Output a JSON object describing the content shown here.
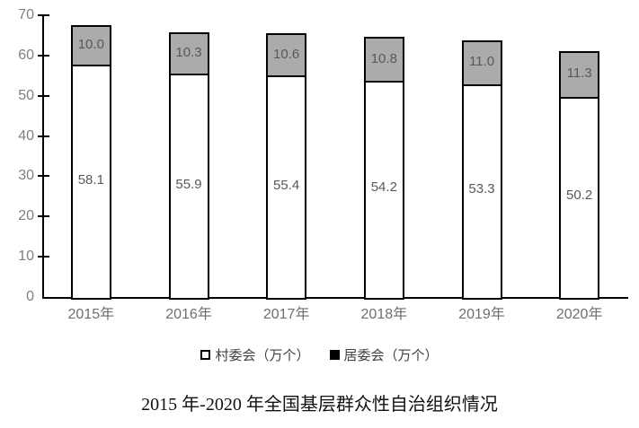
{
  "chart_data": {
    "type": "bar",
    "stacked": true,
    "title": "2015 年-2020 年全国基层群众性自治组织情况",
    "categories": [
      "2015年",
      "2016年",
      "2017年",
      "2018年",
      "2019年",
      "2020年"
    ],
    "series": [
      {
        "name": "村委会（万个）",
        "values": [
          58.1,
          55.9,
          55.4,
          54.2,
          53.3,
          50.2
        ],
        "labels": [
          "58.1",
          "55.9",
          "55.4",
          "54.2",
          "53.3",
          "50.2"
        ],
        "fill": "#ffffff",
        "legend_swatch": "#ffffff"
      },
      {
        "name": "居委会（万个）",
        "values": [
          10.0,
          10.3,
          10.6,
          10.8,
          11.0,
          11.3
        ],
        "labels": [
          "10.0",
          "10.3",
          "10.6",
          "10.8",
          "11.0",
          "11.3"
        ],
        "fill": "#ababab",
        "legend_swatch": "#000000"
      }
    ],
    "ylim": [
      0,
      70
    ],
    "yticks": [
      0,
      10,
      20,
      30,
      40,
      50,
      60,
      70
    ],
    "ytick_labels": [
      "0",
      "10",
      "20",
      "30",
      "40",
      "50",
      "60",
      "70"
    ],
    "xlabel": "",
    "ylabel": "",
    "grid": false,
    "legend_position": "bottom"
  },
  "colors": {
    "background": "#ffffff",
    "bar_border": "#000000",
    "axis": "#000000",
    "value_label": "#595959",
    "ytick_label": "#7f7f7f",
    "xtick_label": "#6e6e6e",
    "legend_label": "#404040",
    "title": "#111111",
    "secondary_fill": "#ababab"
  }
}
